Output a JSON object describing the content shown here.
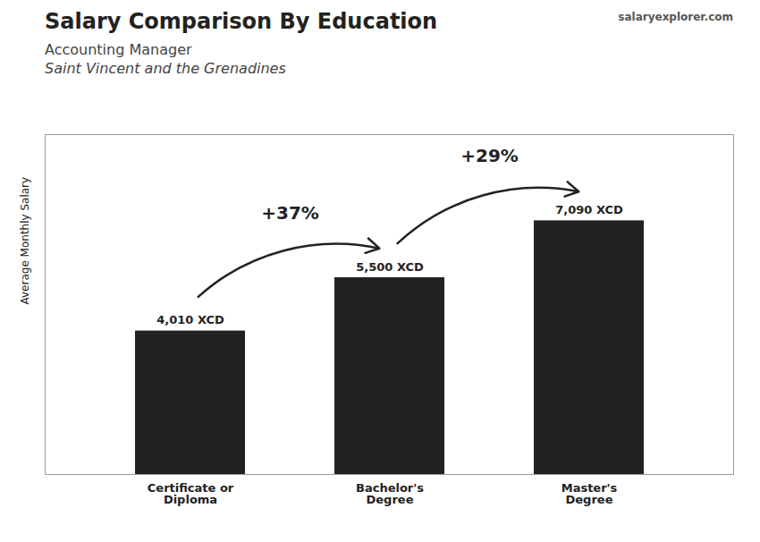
{
  "chart_data": {
    "type": "bar",
    "title": "Salary Comparison By Education",
    "subtitle": [
      "Accounting Manager",
      "Saint Vincent and the Grenadines"
    ],
    "source": "salaryexplorer.com",
    "ylabel": "Average Monthly Salary",
    "categories": [
      "Certificate or\nDiploma",
      "Bachelor's\nDegree",
      "Master's\nDegree"
    ],
    "values": [
      4010,
      5500,
      7090
    ],
    "value_labels": [
      "4,010 XCD",
      "5,500 XCD",
      "7,090 XCD"
    ],
    "data_labels": true,
    "annotations": [
      "+37%",
      "+29%"
    ],
    "ylim": [
      0,
      9500
    ],
    "tick_labels": "x",
    "grid": false
  }
}
